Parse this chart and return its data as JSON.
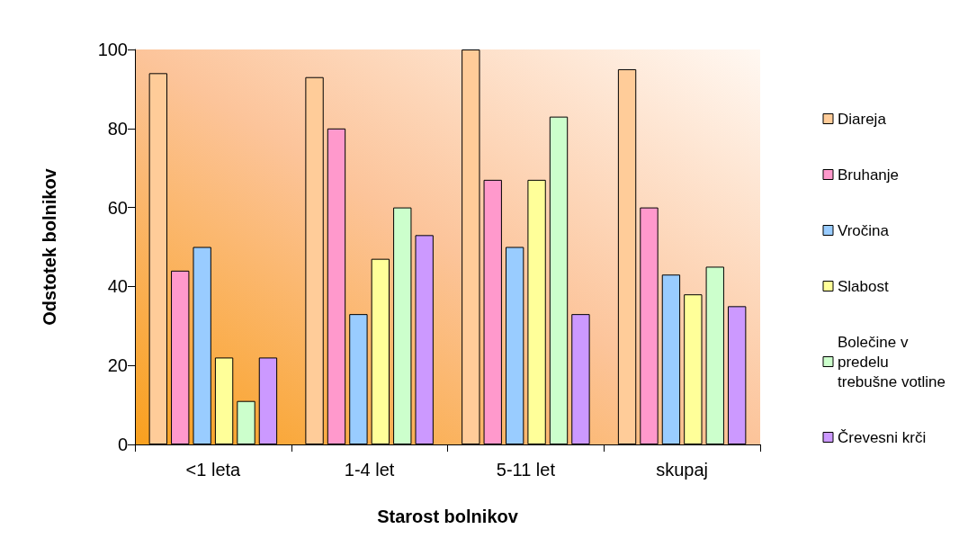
{
  "chart_data": {
    "type": "bar",
    "xlabel": "Starost bolnikov",
    "ylabel": "Odstotek bolnikov",
    "categories": [
      "<1 leta",
      "1-4 let",
      "5-11 let",
      "skupaj"
    ],
    "series": [
      {
        "name": "Diareja",
        "color": "#ffcc99",
        "values": [
          94,
          93,
          100,
          95
        ]
      },
      {
        "name": "Bruhanje",
        "color": "#ff99cc",
        "values": [
          44,
          80,
          67,
          60
        ]
      },
      {
        "name": "Vročina",
        "color": "#99ccff",
        "values": [
          50,
          33,
          50,
          43
        ]
      },
      {
        "name": "Slabost",
        "color": "#ffff99",
        "values": [
          22,
          47,
          67,
          38
        ]
      },
      {
        "name": "Bolečine v predelu trebušne votline",
        "color": "#ccffcc",
        "values": [
          11,
          60,
          83,
          45
        ]
      },
      {
        "name": "Črevesni krči",
        "color": "#cc99ff",
        "values": [
          22,
          53,
          33,
          35
        ]
      }
    ],
    "ylim": [
      0,
      100
    ],
    "yticks": [
      0,
      20,
      40,
      60,
      80,
      100
    ],
    "grid": false,
    "legend": "right"
  }
}
